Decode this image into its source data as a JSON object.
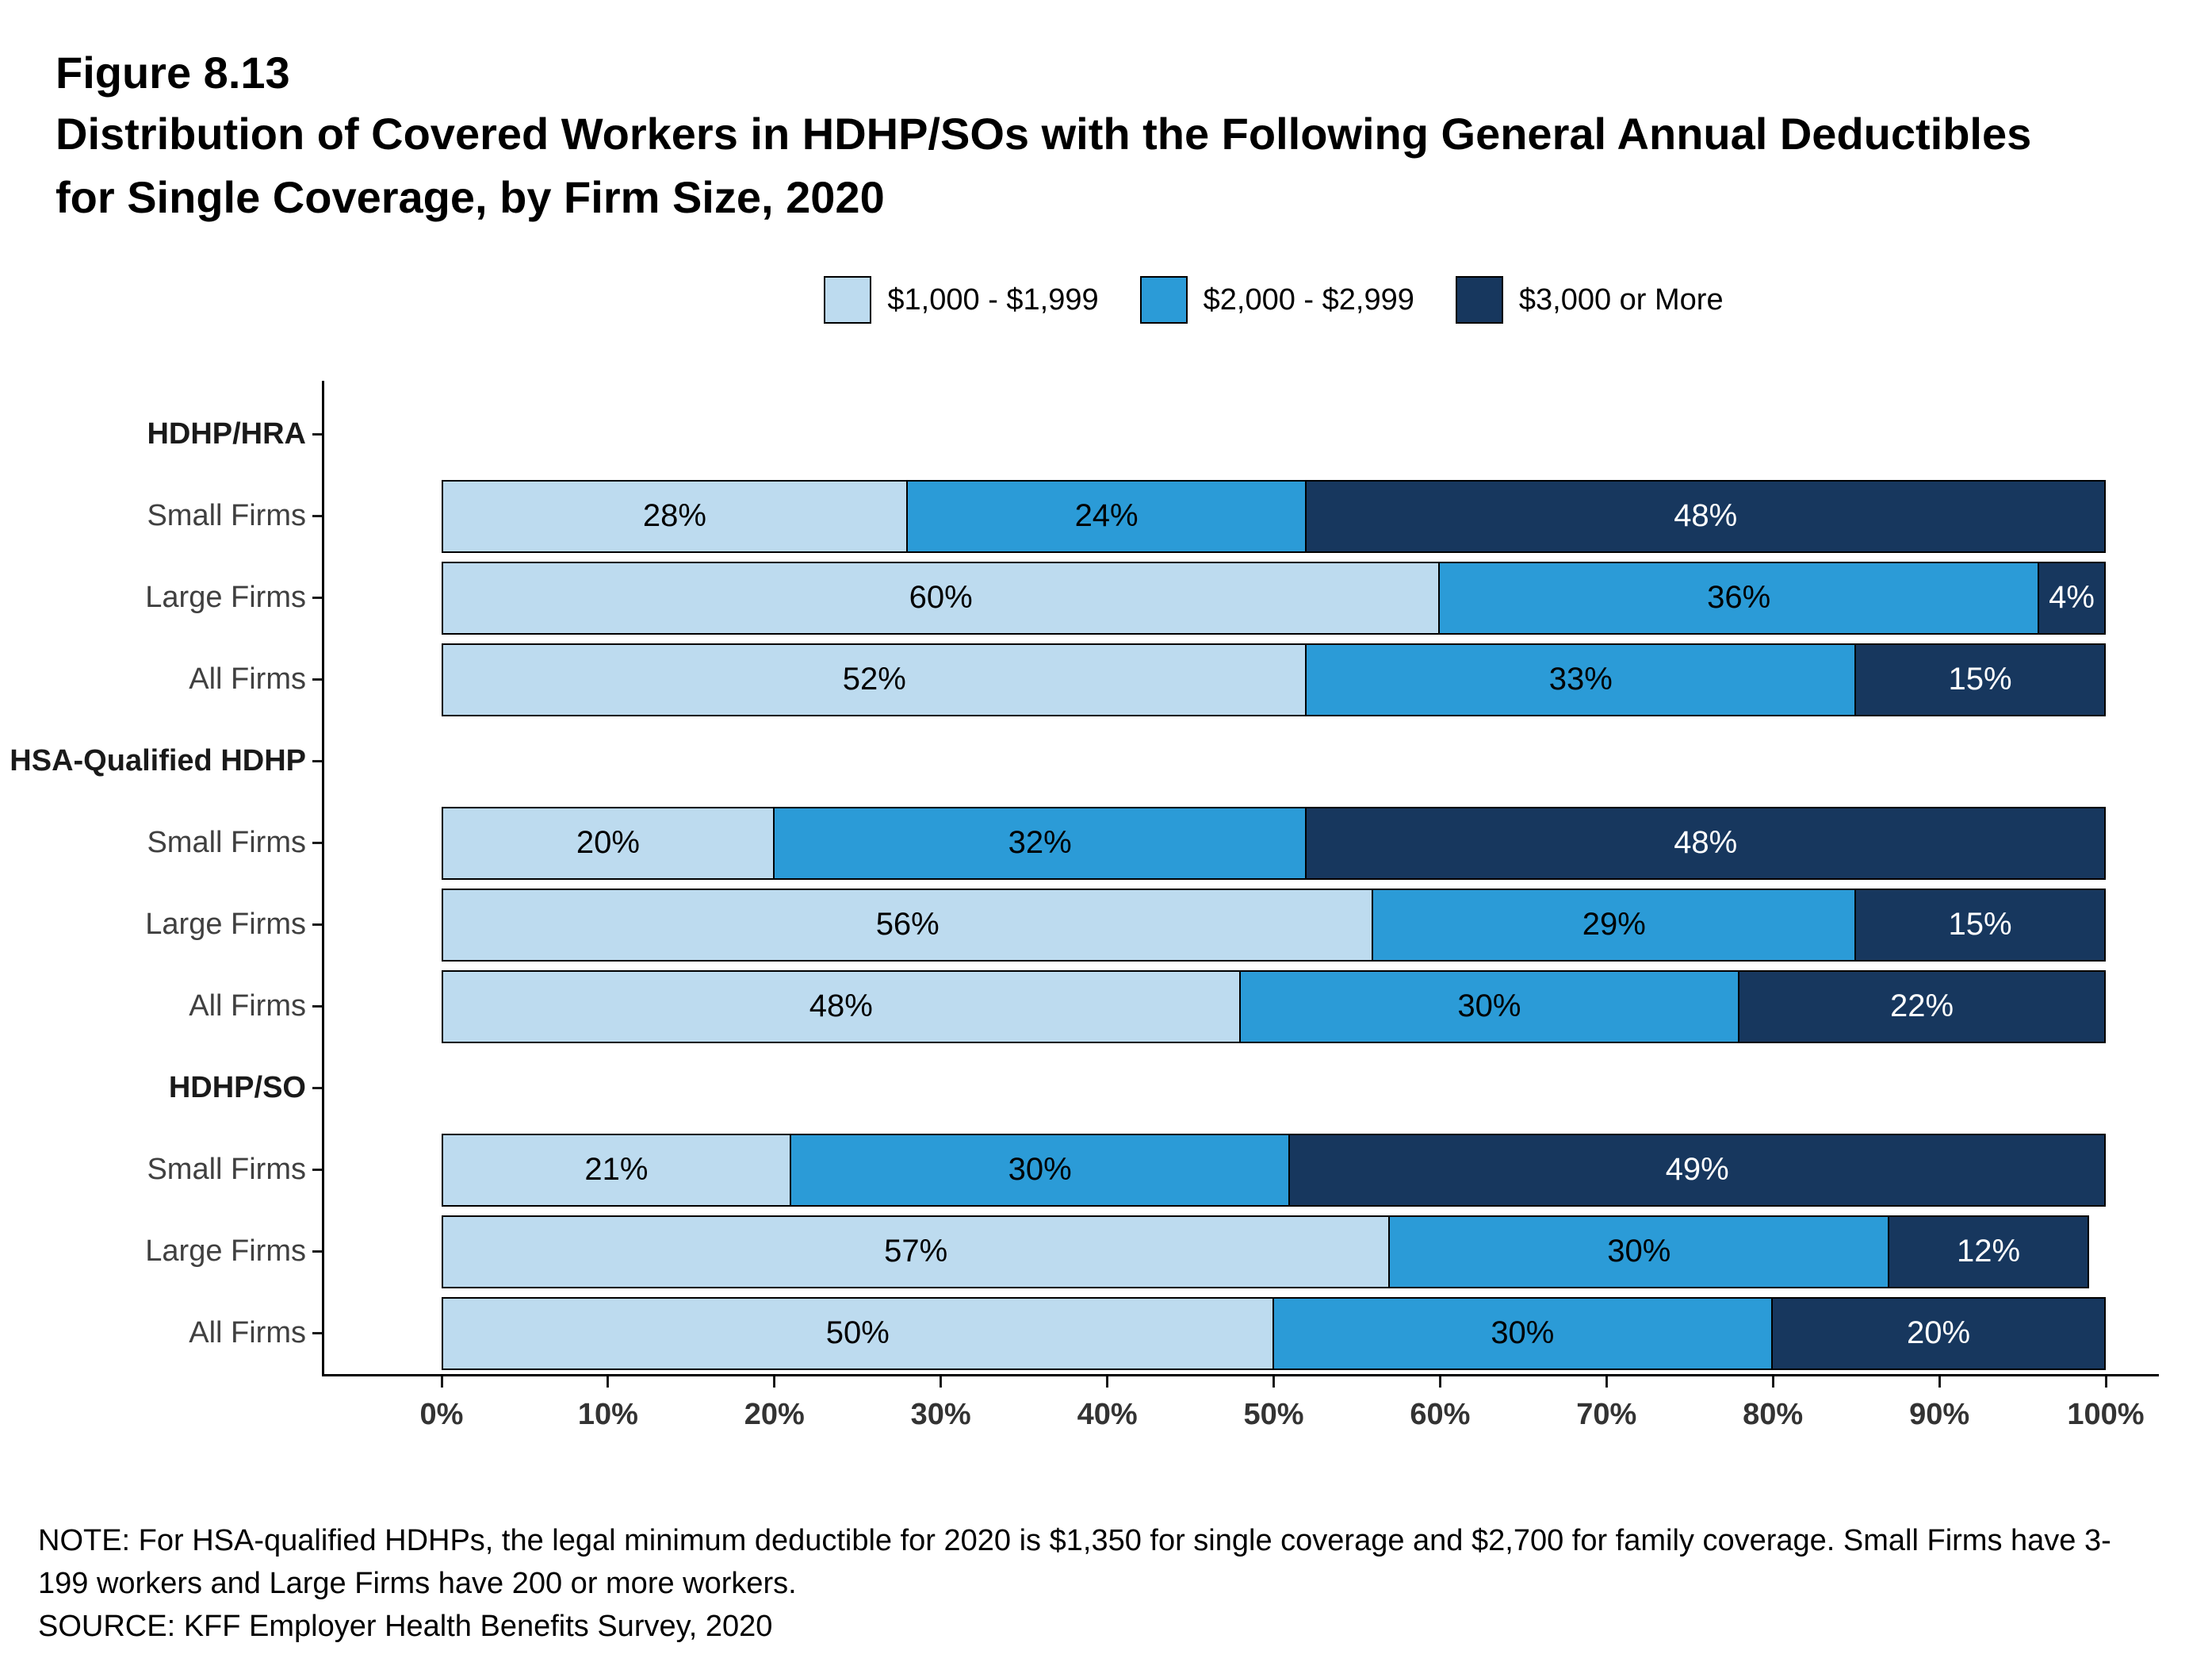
{
  "title": {
    "figure": "Figure 8.13",
    "line1": "Distribution of Covered Workers in HDHP/SOs with the Following General Annual Deductibles",
    "line2": "for Single Coverage, by Firm Size, 2020"
  },
  "legend": [
    {
      "label": "$1,000 - $1,999",
      "color": "#BDDBEF"
    },
    {
      "label": "$2,000 - $2,999",
      "color": "#2B9BD7"
    },
    {
      "label": "$3,000 or More",
      "color": "#17375E"
    }
  ],
  "chart_data": {
    "type": "bar",
    "stacked": true,
    "orientation": "horizontal",
    "title": "Distribution of Covered Workers in HDHP/SOs with the Following General Annual Deductibles for Single Coverage, by Firm Size, 2020",
    "series_names": [
      "$1,000 - $1,999",
      "$2,000 - $2,999",
      "$3,000 or More"
    ],
    "colors": [
      "#BDDBEF",
      "#2B9BD7",
      "#17375E"
    ],
    "label_text_colors": [
      "#000000",
      "#000000",
      "#ffffff"
    ],
    "xlim": [
      0,
      100
    ],
    "x_ticks": [
      "0%",
      "10%",
      "20%",
      "30%",
      "40%",
      "50%",
      "60%",
      "70%",
      "80%",
      "90%",
      "100%"
    ],
    "rows": [
      {
        "type": "group",
        "label": "HDHP/HRA"
      },
      {
        "type": "bar",
        "label": "Small Firms",
        "values": [
          28,
          24,
          48
        ]
      },
      {
        "type": "bar",
        "label": "Large Firms",
        "values": [
          60,
          36,
          4
        ]
      },
      {
        "type": "bar",
        "label": "All Firms",
        "values": [
          52,
          33,
          15
        ]
      },
      {
        "type": "group",
        "label": "HSA-Qualified HDHP"
      },
      {
        "type": "bar",
        "label": "Small Firms",
        "values": [
          20,
          32,
          48
        ]
      },
      {
        "type": "bar",
        "label": "Large Firms",
        "values": [
          56,
          29,
          15
        ]
      },
      {
        "type": "bar",
        "label": "All Firms",
        "values": [
          48,
          30,
          22
        ]
      },
      {
        "type": "group",
        "label": "HDHP/SO"
      },
      {
        "type": "bar",
        "label": "Small Firms",
        "values": [
          21,
          30,
          49
        ]
      },
      {
        "type": "bar",
        "label": "Large Firms",
        "values": [
          57,
          30,
          12
        ]
      },
      {
        "type": "bar",
        "label": "All Firms",
        "values": [
          50,
          30,
          20
        ]
      }
    ]
  },
  "notes": {
    "note": "NOTE: For HSA-qualified HDHPs, the legal minimum deductible for 2020 is $1,350 for single coverage and $2,700 for family coverage. Small Firms have 3-199 workers and Large Firms have 200 or more workers.",
    "source": "SOURCE: KFF Employer Health Benefits Survey, 2020"
  }
}
